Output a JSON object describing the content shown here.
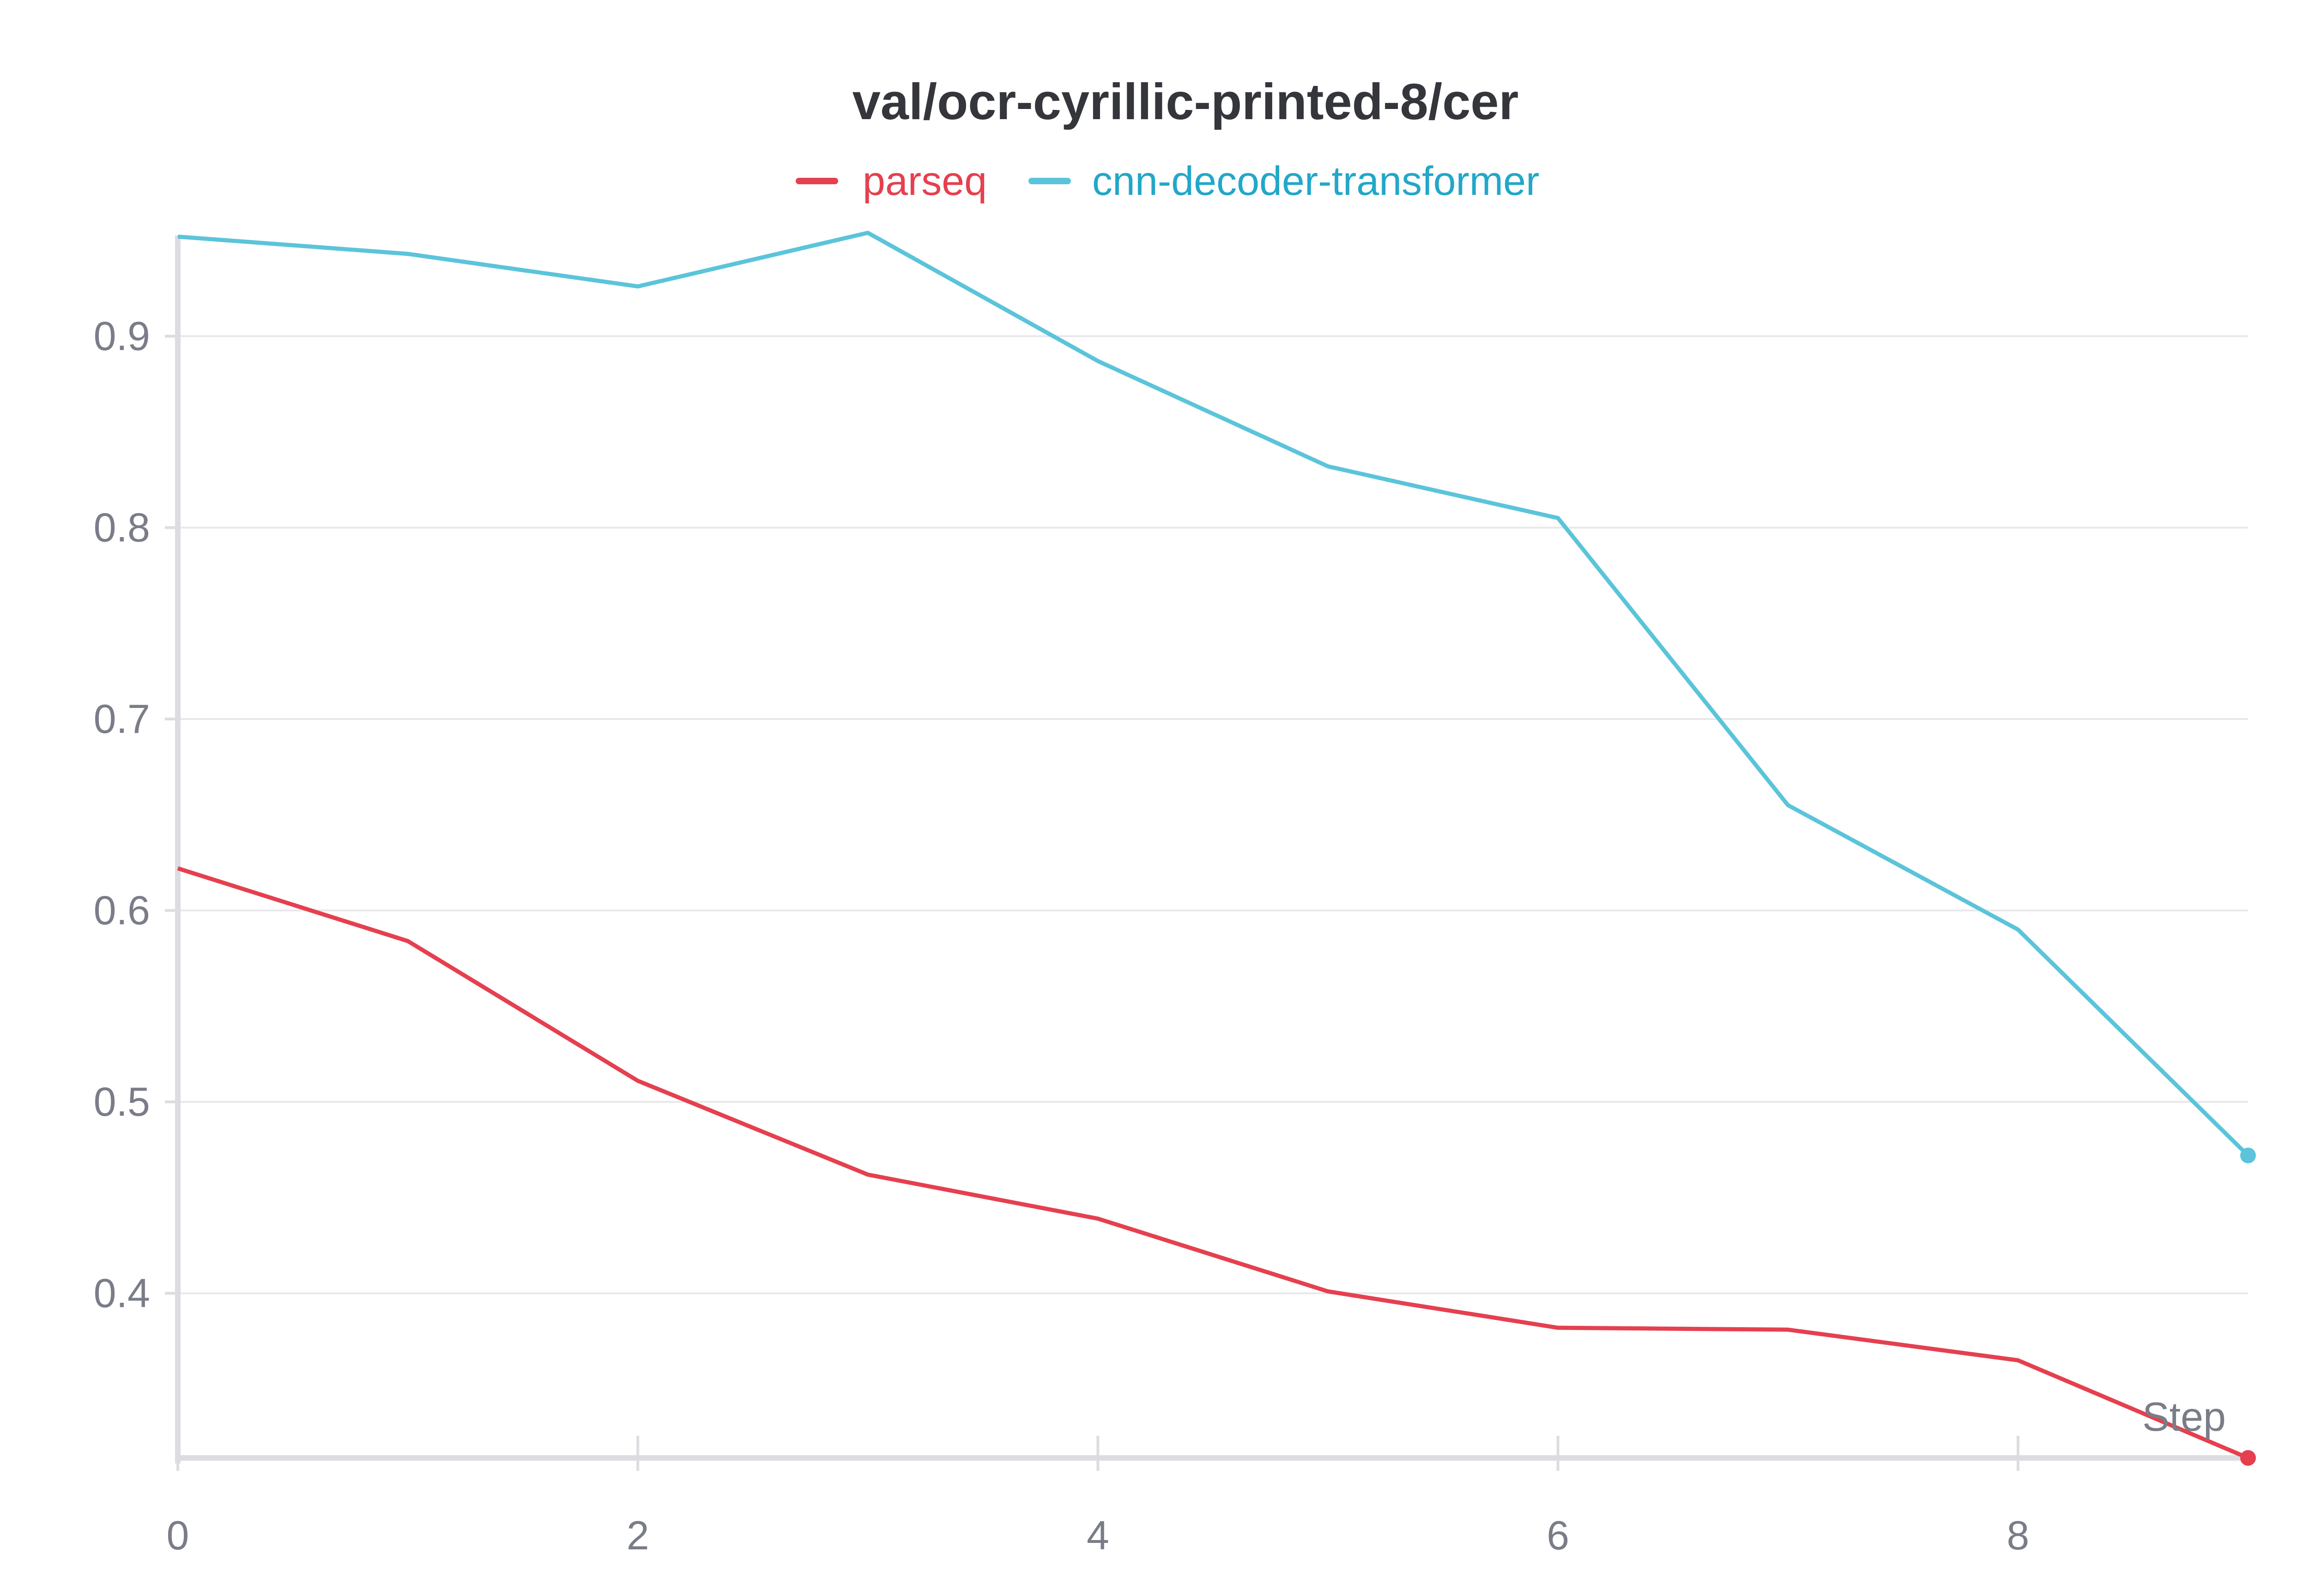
{
  "chart_data": {
    "type": "line",
    "title": "val/ocr-cyrillic-printed-8/cer",
    "xlabel": "Step",
    "ylabel": "",
    "x": [
      0,
      1,
      2,
      3,
      4,
      5,
      6,
      7,
      8,
      9
    ],
    "xticks": [
      0,
      2,
      4,
      6,
      8
    ],
    "yticks": [
      0.4,
      0.5,
      0.6,
      0.7,
      0.8,
      0.9
    ],
    "xlim": [
      0,
      9
    ],
    "ylim": [
      0.314,
      0.955
    ],
    "grid": true,
    "legend_position": "top-center",
    "series": [
      {
        "name": "parseq",
        "color": "#e5404f",
        "values": [
          0.622,
          0.584,
          0.511,
          0.462,
          0.439,
          0.401,
          0.382,
          0.381,
          0.365,
          0.314
        ]
      },
      {
        "name": "cnn-decoder-transformer",
        "color": "#5bc4da",
        "values": [
          0.952,
          0.943,
          0.926,
          0.954,
          0.887,
          0.832,
          0.805,
          0.655,
          0.59,
          0.472
        ]
      }
    ]
  }
}
